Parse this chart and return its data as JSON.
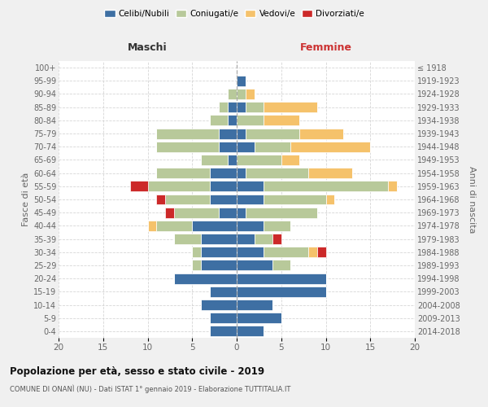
{
  "age_groups": [
    "0-4",
    "5-9",
    "10-14",
    "15-19",
    "20-24",
    "25-29",
    "30-34",
    "35-39",
    "40-44",
    "45-49",
    "50-54",
    "55-59",
    "60-64",
    "65-69",
    "70-74",
    "75-79",
    "80-84",
    "85-89",
    "90-94",
    "95-99",
    "100+"
  ],
  "birth_years": [
    "2014-2018",
    "2009-2013",
    "2004-2008",
    "1999-2003",
    "1994-1998",
    "1989-1993",
    "1984-1988",
    "1979-1983",
    "1974-1978",
    "1969-1973",
    "1964-1968",
    "1959-1963",
    "1954-1958",
    "1949-1953",
    "1944-1948",
    "1939-1943",
    "1934-1938",
    "1929-1933",
    "1924-1928",
    "1919-1923",
    "≤ 1918"
  ],
  "colors": {
    "celibe": "#3e6fa3",
    "coniugato": "#b8c99a",
    "vedovo": "#f5c26b",
    "divorziato": "#cc2929"
  },
  "maschi": {
    "celibe": [
      3,
      3,
      4,
      3,
      7,
      4,
      4,
      4,
      5,
      2,
      3,
      3,
      3,
      1,
      2,
      2,
      1,
      1,
      0,
      0,
      0
    ],
    "coniugato": [
      0,
      0,
      0,
      0,
      0,
      1,
      1,
      3,
      4,
      5,
      5,
      7,
      6,
      3,
      7,
      7,
      2,
      1,
      1,
      0,
      0
    ],
    "vedovo": [
      0,
      0,
      0,
      0,
      0,
      0,
      0,
      0,
      1,
      0,
      0,
      0,
      0,
      0,
      0,
      0,
      0,
      0,
      0,
      0,
      0
    ],
    "divorziato": [
      0,
      0,
      0,
      0,
      0,
      0,
      0,
      0,
      0,
      1,
      1,
      2,
      0,
      0,
      0,
      0,
      0,
      0,
      0,
      0,
      0
    ]
  },
  "femmine": {
    "celibe": [
      3,
      5,
      4,
      10,
      10,
      4,
      3,
      2,
      3,
      1,
      3,
      3,
      1,
      0,
      2,
      1,
      0,
      1,
      0,
      1,
      0
    ],
    "coniugato": [
      0,
      0,
      0,
      0,
      0,
      2,
      5,
      2,
      3,
      8,
      7,
      14,
      7,
      5,
      4,
      6,
      3,
      2,
      1,
      0,
      0
    ],
    "vedovo": [
      0,
      0,
      0,
      0,
      0,
      0,
      1,
      0,
      0,
      0,
      1,
      1,
      5,
      2,
      9,
      5,
      4,
      6,
      1,
      0,
      0
    ],
    "divorziato": [
      0,
      0,
      0,
      0,
      0,
      0,
      1,
      1,
      0,
      0,
      0,
      0,
      0,
      0,
      0,
      0,
      0,
      0,
      0,
      0,
      0
    ]
  },
  "xlim": 20,
  "xtick_step": 5,
  "title": "Popolazione per età, sesso e stato civile - 2019",
  "subtitle": "COMUNE DI ONANÌ (NU) - Dati ISTAT 1° gennaio 2019 - Elaborazione TUTTITALIA.IT",
  "label_maschi": "Maschi",
  "label_femmine": "Femmine",
  "ylabel_left": "Fasce di età",
  "ylabel_right": "Anni di nascita",
  "legend_labels": [
    "Celibi/Nubili",
    "Coniugati/e",
    "Vedovi/e",
    "Divorziati/e"
  ],
  "bg_color": "#f0f0f0",
  "plot_bg": "#ffffff",
  "grid_color": "#cccccc",
  "maschi_label_color": "#333333",
  "femmine_label_color": "#cc3333",
  "tick_color": "#666666",
  "ylabel_color": "#666666"
}
